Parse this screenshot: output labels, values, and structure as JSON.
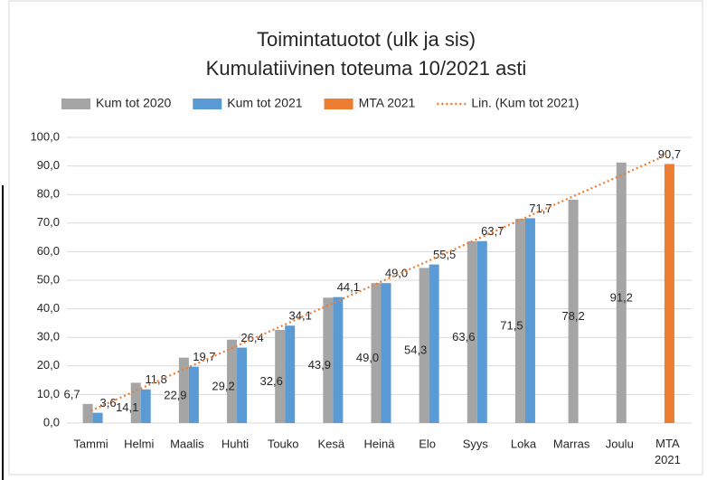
{
  "chart_data": {
    "type": "bar",
    "title": "Toimintatuotot (ulk ja sis)",
    "subtitle": "Kumulatiivinen toteuma 10/2021 asti",
    "categories": [
      "Tammi",
      "Helmi",
      "Maalis",
      "Huhti",
      "Touko",
      "Kesä",
      "Heinä",
      "Elo",
      "Syys",
      "Loka",
      "Marras",
      "Joulu",
      "MTA 2021"
    ],
    "series": [
      {
        "name": "Kum tot 2020",
        "color": "#a5a5a5",
        "values": [
          6.7,
          14.1,
          22.9,
          29.2,
          32.6,
          43.9,
          49.0,
          54.3,
          63.6,
          71.5,
          78.2,
          91.2,
          null
        ],
        "value_labels": [
          "6,7",
          "14,1",
          "22,9",
          "29,2",
          "32,6",
          "43,9",
          "49,0",
          "54,3",
          "63,6",
          "71,5",
          "78,2",
          "91,2",
          null
        ]
      },
      {
        "name": "Kum tot 2021",
        "color": "#5b9bd5",
        "values": [
          3.6,
          11.8,
          19.7,
          26.4,
          34.1,
          44.1,
          49.0,
          55.5,
          63.7,
          71.7,
          null,
          null,
          null
        ],
        "value_labels": [
          "3,6",
          "11,8",
          "19,7",
          "26,4",
          "34,1",
          "44,1",
          "49,0",
          "55,5",
          "63,7",
          "71,7",
          null,
          null,
          null
        ]
      },
      {
        "name": "MTA 2021",
        "color": "#ed7d31",
        "values": [
          null,
          null,
          null,
          null,
          null,
          null,
          null,
          null,
          null,
          null,
          null,
          null,
          90.7
        ],
        "value_labels": [
          null,
          null,
          null,
          null,
          null,
          null,
          null,
          null,
          null,
          null,
          null,
          null,
          "90,7"
        ]
      },
      {
        "name": "Lin. (Kum tot 2021)",
        "color": "#ed7d31",
        "type": "trendline",
        "values": [
          4.3,
          11.8,
          19.3,
          26.7,
          34.2,
          41.7,
          49.2,
          56.6,
          64.1,
          71.6,
          79.1,
          86.5,
          94.0
        ]
      }
    ],
    "ylim": [
      0,
      100
    ],
    "yticks": [
      {
        "value": 0,
        "label": "0,0"
      },
      {
        "value": 10,
        "label": "10,0"
      },
      {
        "value": 20,
        "label": "20,0"
      },
      {
        "value": 30,
        "label": "30,0"
      },
      {
        "value": 40,
        "label": "40,0"
      },
      {
        "value": 50,
        "label": "50,0"
      },
      {
        "value": 60,
        "label": "60,0"
      },
      {
        "value": 70,
        "label": "70,0"
      },
      {
        "value": 80,
        "label": "80,0"
      },
      {
        "value": 90,
        "label": "90,0"
      },
      {
        "value": 100,
        "label": "100,0"
      }
    ],
    "grid": true
  }
}
